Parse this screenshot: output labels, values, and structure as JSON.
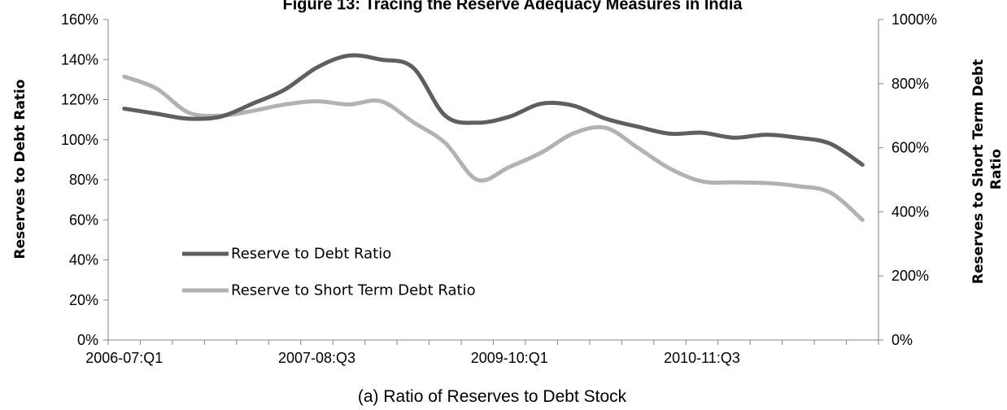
{
  "chart_data": {
    "type": "line",
    "title": "Figure 13: Tracing the Reserve Adequacy Measures in India",
    "caption": "(a) Ratio of Reserves to Debt Stock",
    "ylabel_left": "Reserves to Debt Ratio",
    "ylabel_right_lines": [
      "Reserves to Short Term Debt",
      "Ratio"
    ],
    "ylim_left": [
      0,
      160
    ],
    "ylim_right": [
      0,
      1000
    ],
    "yticks_left": [
      "0%",
      "20%",
      "40%",
      "60%",
      "80%",
      "100%",
      "120%",
      "140%",
      "160%"
    ],
    "yticks_right": [
      "0%",
      "200%",
      "400%",
      "600%",
      "800%",
      "1000%"
    ],
    "x_tick_labels": [
      {
        "index": 0,
        "label": "2006-07:Q1"
      },
      {
        "index": 6,
        "label": "2007-08:Q3"
      },
      {
        "index": 12,
        "label": "2009-10:Q1"
      },
      {
        "index": 18,
        "label": "2010-11:Q3"
      }
    ],
    "n_categories": 24,
    "grid": false,
    "legend_position": "bottom-left (inside plot)",
    "series": [
      {
        "name": "Reserve to Debt Ratio",
        "axis": "left",
        "color": "#5f5f5f",
        "values": [
          115.5,
          113,
          110.5,
          111.5,
          118,
          125,
          136,
          142,
          140,
          136,
          112,
          108.5,
          111.5,
          118,
          117,
          110.5,
          106.5,
          103,
          103.5,
          101,
          102.5,
          101,
          98,
          87.5
        ]
      },
      {
        "name": "Reserve to Short Term Debt Ratio",
        "axis": "right",
        "color": "#b2b2b2",
        "values": [
          822,
          785,
          710,
          700,
          715,
          735,
          745,
          735,
          745,
          680,
          615,
          500,
          540,
          585,
          645,
          662,
          600,
          535,
          495,
          492,
          490,
          480,
          460,
          375
        ]
      }
    ]
  }
}
